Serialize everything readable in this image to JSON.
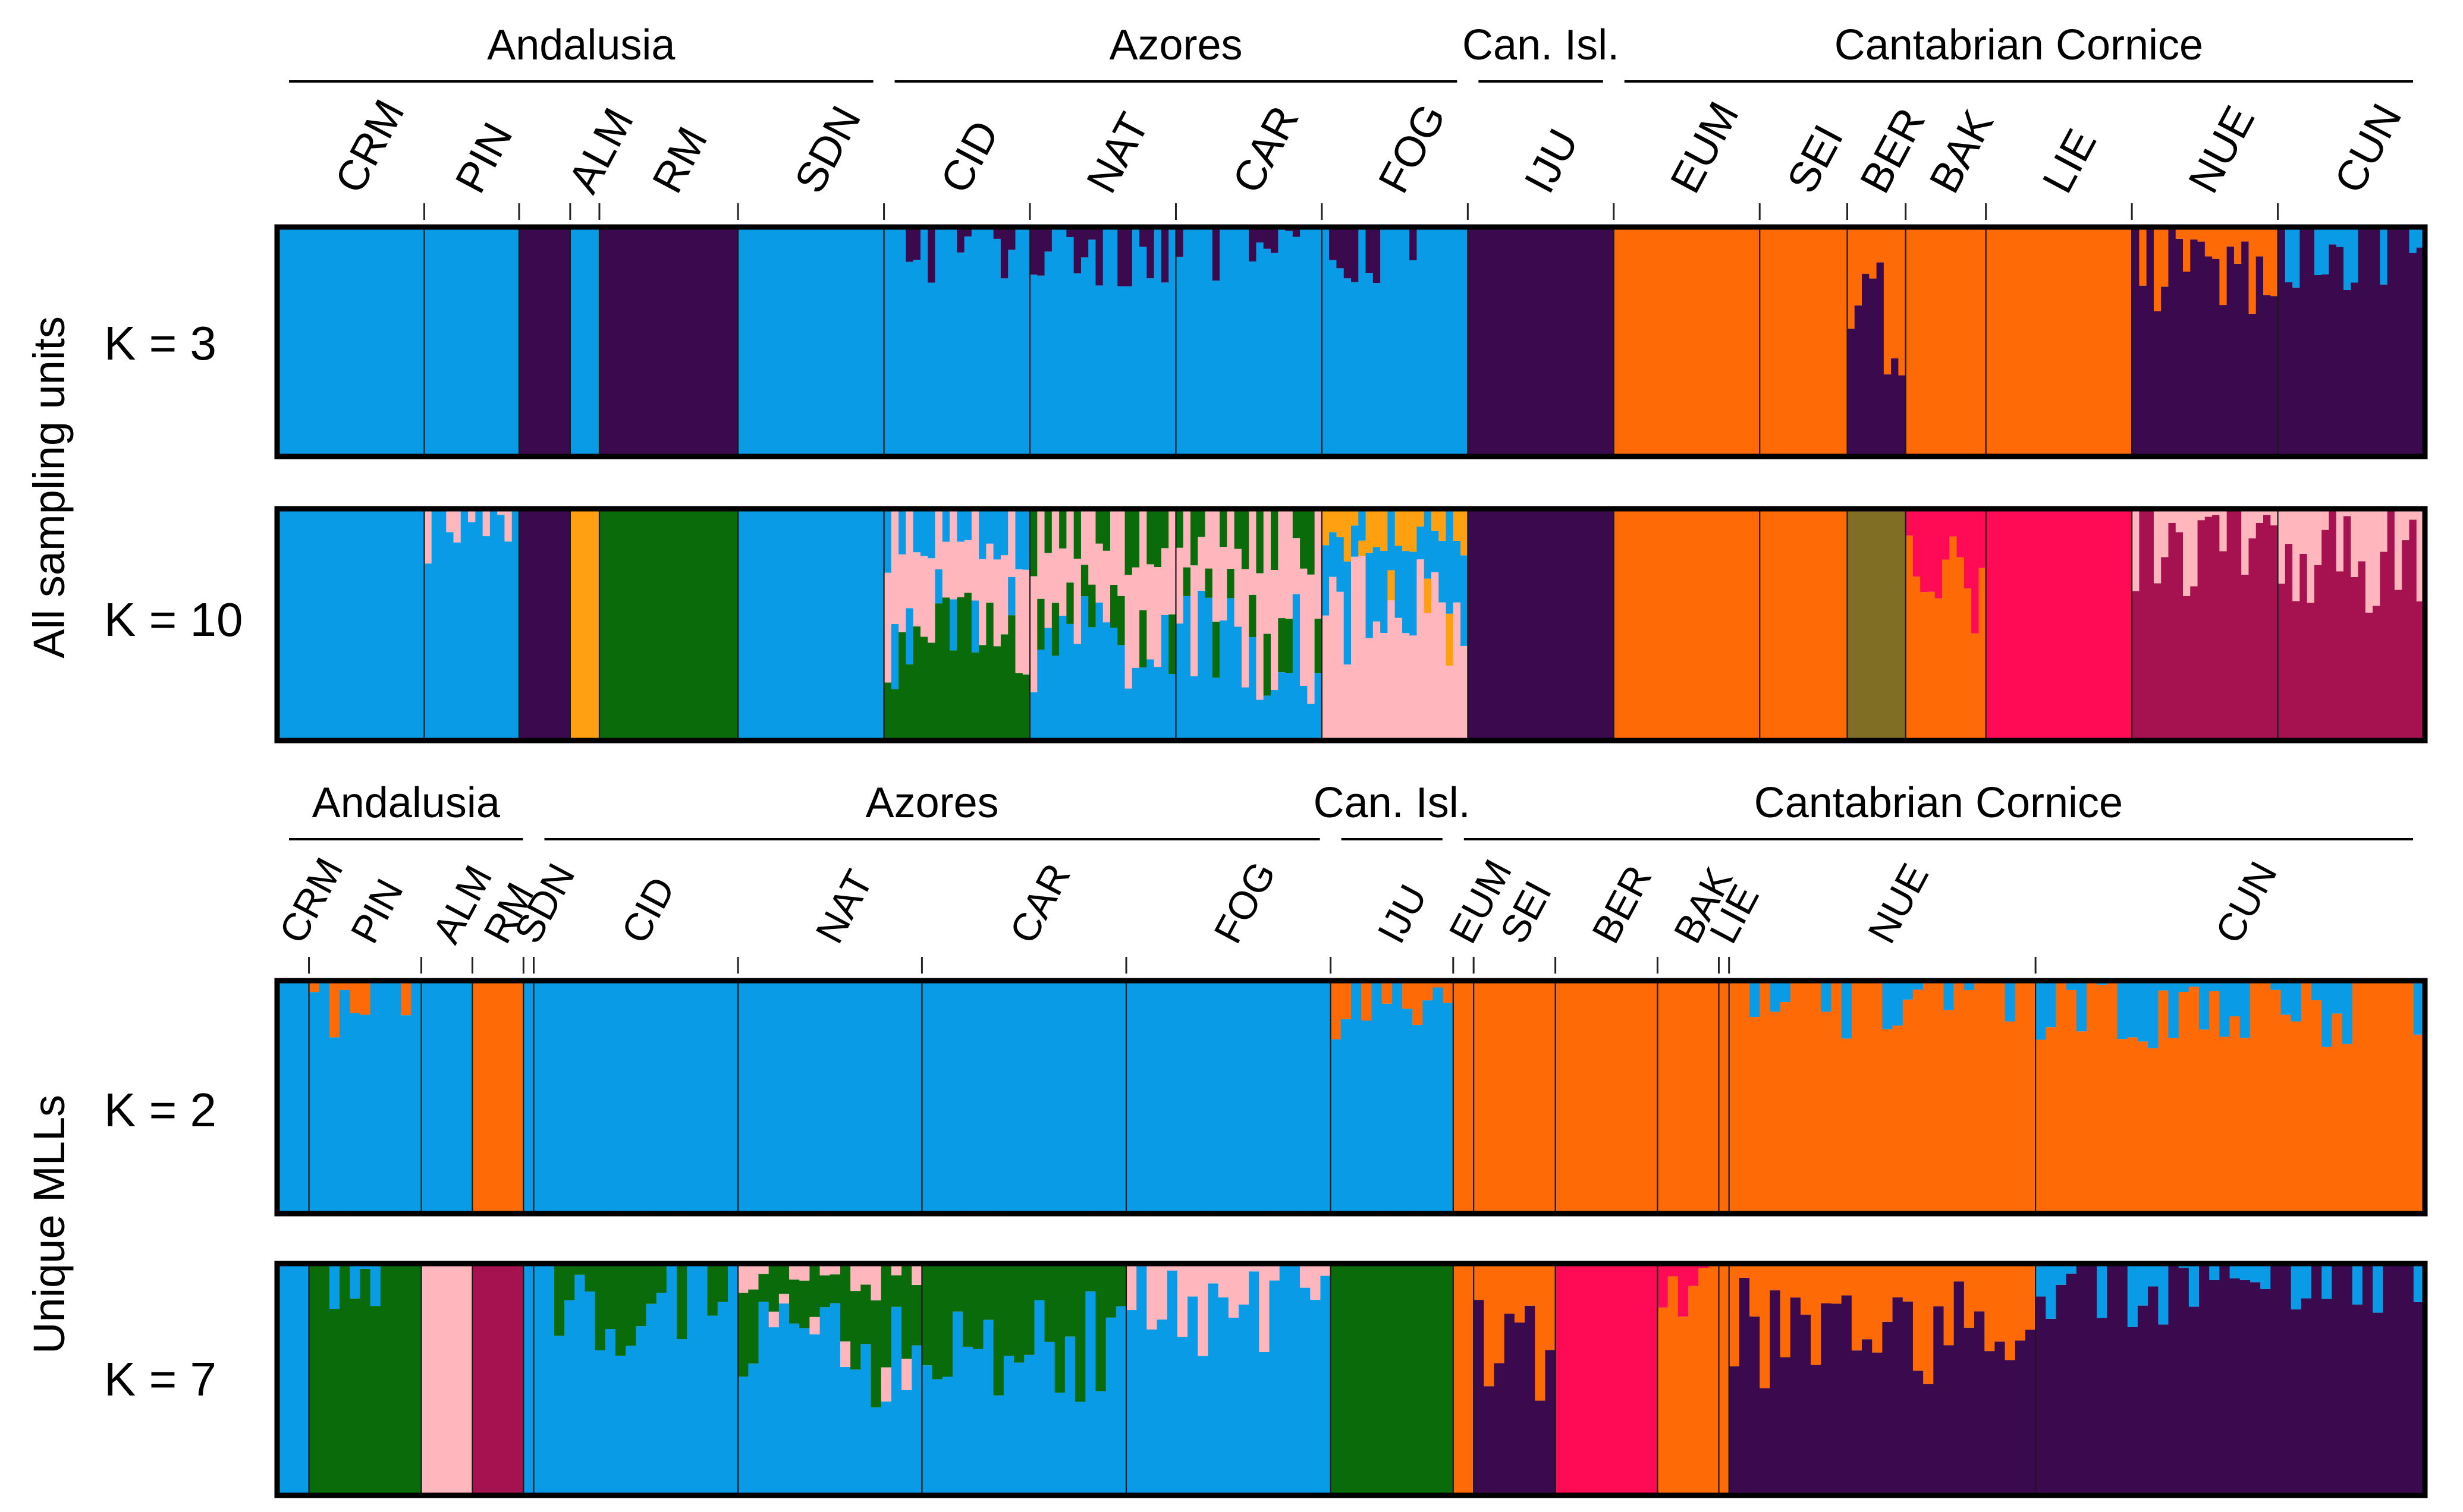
{
  "figure": {
    "panel_groups": [
      "All sampling units",
      "Unique MLLs"
    ]
  },
  "colors": {
    "blue": "#0a9be6",
    "purple": "#3b0a4e",
    "orange": "#fe6a06",
    "green": "#0a6b0a",
    "pink": "#ffb6bd",
    "magenta": "#a5124f",
    "crimson": "#ff0a55",
    "gold": "#ffa010",
    "olive": "#7f6e24",
    "navy": "#1a1470",
    "frame": "#000000"
  },
  "chart_data": [
    {
      "type": "stacked-bar",
      "title": "K = 3",
      "group_label": "All sampling units",
      "regions": [
        {
          "name": "Andalusia",
          "start": "CRM",
          "end": "SDN"
        },
        {
          "name": "Azores",
          "start": "CID",
          "end": "FOG"
        },
        {
          "name": "Can. Isl.",
          "start": "IJU",
          "end": "IJU"
        },
        {
          "name": "Cantabrian Cornice",
          "start": "EUM",
          "end": "CUN"
        }
      ],
      "populations": [
        {
          "label": "CRM",
          "n": 20,
          "base": [
            [
              "blue",
              1.0
            ]
          ]
        },
        {
          "label": "PIN",
          "n": 13,
          "base": [
            [
              "blue",
              1.0
            ]
          ]
        },
        {
          "label": "",
          "n": 7,
          "base": [
            [
              "purple",
              1.0
            ]
          ]
        },
        {
          "label": "ALM",
          "n": 4,
          "base": [
            [
              "blue",
              1.0
            ]
          ]
        },
        {
          "label": "RM",
          "n": 19,
          "base": [
            [
              "purple",
              1.0
            ]
          ]
        },
        {
          "label": "SDN",
          "n": 20,
          "base": [
            [
              "blue",
              1.0
            ]
          ]
        },
        {
          "label": "CID",
          "n": 20,
          "base": [
            [
              "blue",
              0.98
            ],
            [
              "purple",
              0.02
            ]
          ]
        },
        {
          "label": "NAT",
          "n": 20,
          "base": [
            [
              "blue",
              0.98
            ],
            [
              "purple",
              0.02
            ]
          ]
        },
        {
          "label": "CAR",
          "n": 20,
          "base": [
            [
              "blue",
              0.98
            ],
            [
              "purple",
              0.02
            ]
          ]
        },
        {
          "label": "FOG",
          "n": 20,
          "base": [
            [
              "blue",
              0.98
            ],
            [
              "purple",
              0.02
            ]
          ]
        },
        {
          "label": "IJU",
          "n": 20,
          "base": [
            [
              "purple",
              1.0
            ]
          ]
        },
        {
          "label": "EUM",
          "n": 20,
          "base": [
            [
              "orange",
              1.0
            ]
          ]
        },
        {
          "label": "SEI",
          "n": 12,
          "base": [
            [
              "orange",
              1.0
            ]
          ]
        },
        {
          "label": "BER",
          "n": 8,
          "base": [
            [
              "purple",
              0.6
            ],
            [
              "orange",
              0.4
            ]
          ]
        },
        {
          "label": "BAK",
          "n": 11,
          "base": [
            [
              "orange",
              1.0
            ]
          ]
        },
        {
          "label": "LIE",
          "n": 20,
          "base": [
            [
              "orange",
              1.0
            ]
          ]
        },
        {
          "label": "NUE",
          "n": 20,
          "base": [
            [
              "purple",
              0.8
            ],
            [
              "orange",
              0.2
            ]
          ]
        },
        {
          "label": "CUN",
          "n": 20,
          "base": [
            [
              "purple",
              0.95
            ],
            [
              "blue",
              0.05
            ]
          ]
        }
      ]
    },
    {
      "type": "stacked-bar",
      "title": "K = 10",
      "group_label": "All sampling units",
      "populations": [
        {
          "label": "CRM",
          "n": 20,
          "base": [
            [
              "blue",
              1.0
            ]
          ]
        },
        {
          "label": "PIN",
          "n": 13,
          "base": [
            [
              "blue",
              0.97
            ],
            [
              "pink",
              0.03
            ]
          ]
        },
        {
          "label": "",
          "n": 7,
          "base": [
            [
              "purple",
              1.0
            ]
          ]
        },
        {
          "label": "ALM",
          "n": 4,
          "base": [
            [
              "gold",
              1.0
            ]
          ]
        },
        {
          "label": "RM",
          "n": 19,
          "base": [
            [
              "green",
              1.0
            ]
          ]
        },
        {
          "label": "SDN",
          "n": 20,
          "base": [
            [
              "blue",
              1.0
            ]
          ]
        },
        {
          "label": "CID",
          "n": 20,
          "base": [
            [
              "green",
              0.45
            ],
            [
              "pink",
              0.35
            ],
            [
              "blue",
              0.2
            ]
          ]
        },
        {
          "label": "NAT",
          "n": 20,
          "base": [
            [
              "blue",
              0.45
            ],
            [
              "pink",
              0.35
            ],
            [
              "green",
              0.2
            ]
          ]
        },
        {
          "label": "CAR",
          "n": 20,
          "base": [
            [
              "blue",
              0.4
            ],
            [
              "pink",
              0.4
            ],
            [
              "green",
              0.2
            ]
          ]
        },
        {
          "label": "FOG",
          "n": 20,
          "base": [
            [
              "pink",
              0.55
            ],
            [
              "blue",
              0.3
            ],
            [
              "gold",
              0.15
            ]
          ]
        },
        {
          "label": "IJU",
          "n": 20,
          "base": [
            [
              "purple",
              1.0
            ]
          ]
        },
        {
          "label": "EUM",
          "n": 20,
          "base": [
            [
              "orange",
              1.0
            ]
          ]
        },
        {
          "label": "SEI",
          "n": 12,
          "base": [
            [
              "orange",
              1.0
            ]
          ]
        },
        {
          "label": "BER",
          "n": 8,
          "base": [
            [
              "olive",
              1.0
            ]
          ]
        },
        {
          "label": "BAK",
          "n": 11,
          "base": [
            [
              "orange",
              0.7
            ],
            [
              "crimson",
              0.3
            ]
          ]
        },
        {
          "label": "LIE",
          "n": 20,
          "base": [
            [
              "crimson",
              1.0
            ]
          ]
        },
        {
          "label": "NUE",
          "n": 20,
          "base": [
            [
              "magenta",
              0.85
            ],
            [
              "pink",
              0.15
            ]
          ]
        },
        {
          "label": "CUN",
          "n": 20,
          "base": [
            [
              "magenta",
              0.8
            ],
            [
              "pink",
              0.2
            ]
          ]
        }
      ]
    },
    {
      "type": "stacked-bar",
      "title": "K = 2",
      "group_label": "Unique MLLs",
      "regions": [
        {
          "name": "Andalusia",
          "start": "CRM",
          "end": "SDN"
        },
        {
          "name": "Azores",
          "start": "CID",
          "end": "FOG"
        },
        {
          "name": "Can. Isl.",
          "start": "IJU",
          "end": "IJU"
        },
        {
          "name": "Cantabrian Cornice",
          "start": "EUM",
          "end": "CUN"
        }
      ],
      "populations": [
        {
          "label": "CRM",
          "n": 3,
          "base": [
            [
              "blue",
              1.0
            ]
          ]
        },
        {
          "label": "PIN",
          "n": 11,
          "base": [
            [
              "blue",
              0.97
            ],
            [
              "orange",
              0.03
            ]
          ]
        },
        {
          "label": "ALM",
          "n": 5,
          "base": [
            [
              "blue",
              1.0
            ]
          ]
        },
        {
          "label": "RM",
          "n": 5,
          "base": [
            [
              "orange",
              1.0
            ]
          ]
        },
        {
          "label": "SDN",
          "n": 1,
          "base": [
            [
              "blue",
              1.0
            ]
          ]
        },
        {
          "label": "CID",
          "n": 20,
          "base": [
            [
              "blue",
              1.0
            ]
          ]
        },
        {
          "label": "NAT",
          "n": 18,
          "base": [
            [
              "blue",
              1.0
            ]
          ]
        },
        {
          "label": "CAR",
          "n": 20,
          "base": [
            [
              "blue",
              1.0
            ]
          ]
        },
        {
          "label": "FOG",
          "n": 20,
          "base": [
            [
              "blue",
              1.0
            ]
          ]
        },
        {
          "label": "IJU",
          "n": 12,
          "base": [
            [
              "blue",
              0.95
            ],
            [
              "orange",
              0.05
            ]
          ]
        },
        {
          "label": "EUM",
          "n": 2,
          "base": [
            [
              "orange",
              1.0
            ]
          ]
        },
        {
          "label": "SEI",
          "n": 8,
          "base": [
            [
              "orange",
              1.0
            ]
          ]
        },
        {
          "label": "BER",
          "n": 10,
          "base": [
            [
              "orange",
              1.0
            ]
          ]
        },
        {
          "label": "BAK",
          "n": 6,
          "base": [
            [
              "orange",
              1.0
            ]
          ]
        },
        {
          "label": "LIE",
          "n": 1,
          "base": [
            [
              "orange",
              1.0
            ]
          ]
        },
        {
          "label": "NUE",
          "n": 30,
          "base": [
            [
              "orange",
              0.97
            ],
            [
              "blue",
              0.03
            ]
          ]
        },
        {
          "label": "CUN",
          "n": 38,
          "base": [
            [
              "orange",
              0.95
            ],
            [
              "blue",
              0.05
            ]
          ]
        }
      ]
    },
    {
      "type": "stacked-bar",
      "title": "K = 7",
      "group_label": "Unique MLLs",
      "populations": [
        {
          "label": "CRM",
          "n": 3,
          "base": [
            [
              "blue",
              1.0
            ]
          ]
        },
        {
          "label": "PIN",
          "n": 11,
          "base": [
            [
              "green",
              0.95
            ],
            [
              "blue",
              0.05
            ]
          ]
        },
        {
          "label": "ALM",
          "n": 5,
          "base": [
            [
              "pink",
              1.0
            ]
          ]
        },
        {
          "label": "RM",
          "n": 5,
          "base": [
            [
              "magenta",
              1.0
            ]
          ]
        },
        {
          "label": "SDN",
          "n": 1,
          "base": [
            [
              "blue",
              1.0
            ]
          ]
        },
        {
          "label": "CID",
          "n": 20,
          "base": [
            [
              "blue",
              0.85
            ],
            [
              "green",
              0.15
            ]
          ]
        },
        {
          "label": "NAT",
          "n": 18,
          "base": [
            [
              "blue",
              0.6
            ],
            [
              "green",
              0.3
            ],
            [
              "pink",
              0.1
            ]
          ]
        },
        {
          "label": "CAR",
          "n": 20,
          "base": [
            [
              "blue",
              0.65
            ],
            [
              "green",
              0.35
            ]
          ]
        },
        {
          "label": "FOG",
          "n": 20,
          "base": [
            [
              "blue",
              0.85
            ],
            [
              "pink",
              0.15
            ]
          ]
        },
        {
          "label": "IJU",
          "n": 12,
          "base": [
            [
              "green",
              1.0
            ]
          ]
        },
        {
          "label": "EUM",
          "n": 2,
          "base": [
            [
              "orange",
              1.0
            ]
          ]
        },
        {
          "label": "SEI",
          "n": 8,
          "base": [
            [
              "purple",
              0.6
            ],
            [
              "orange",
              0.4
            ]
          ]
        },
        {
          "label": "BER",
          "n": 10,
          "base": [
            [
              "crimson",
              1.0
            ]
          ]
        },
        {
          "label": "BAK",
          "n": 6,
          "base": [
            [
              "orange",
              0.85
            ],
            [
              "crimson",
              0.15
            ]
          ]
        },
        {
          "label": "LIE",
          "n": 1,
          "base": [
            [
              "orange",
              1.0
            ]
          ]
        },
        {
          "label": "NUE",
          "n": 30,
          "base": [
            [
              "purple",
              0.7
            ],
            [
              "orange",
              0.3
            ]
          ]
        },
        {
          "label": "CUN",
          "n": 38,
          "base": [
            [
              "purple",
              0.95
            ],
            [
              "blue",
              0.05
            ]
          ]
        }
      ]
    }
  ]
}
